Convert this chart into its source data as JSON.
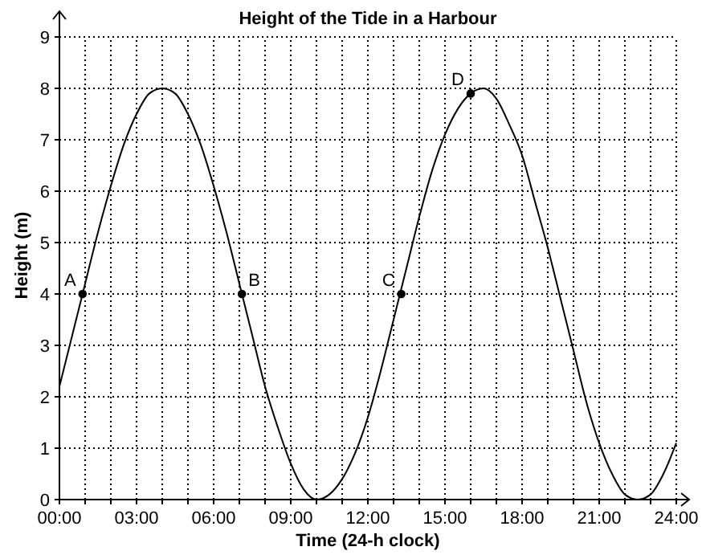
{
  "chart_data": {
    "type": "line",
    "title": "Height of the Tide in a Harbour",
    "xlabel": "Time (24-h clock)",
    "ylabel": "Height (m)",
    "xlim": [
      0,
      24.5
    ],
    "ylim": [
      0,
      9.5
    ],
    "xticks": [
      {
        "value": 0,
        "label": "00:00"
      },
      {
        "value": 1,
        "label": null
      },
      {
        "value": 2,
        "label": null
      },
      {
        "value": 3,
        "label": "03:00"
      },
      {
        "value": 4,
        "label": null
      },
      {
        "value": 5,
        "label": null
      },
      {
        "value": 6,
        "label": "06:00"
      },
      {
        "value": 7,
        "label": null
      },
      {
        "value": 8,
        "label": null
      },
      {
        "value": 9,
        "label": "09:00"
      },
      {
        "value": 10,
        "label": null
      },
      {
        "value": 11,
        "label": null
      },
      {
        "value": 12,
        "label": "12:00"
      },
      {
        "value": 13,
        "label": null
      },
      {
        "value": 14,
        "label": null
      },
      {
        "value": 15,
        "label": "15:00"
      },
      {
        "value": 16,
        "label": null
      },
      {
        "value": 17,
        "label": null
      },
      {
        "value": 18,
        "label": "18:00"
      },
      {
        "value": 19,
        "label": null
      },
      {
        "value": 20,
        "label": null
      },
      {
        "value": 21,
        "label": "21:00"
      },
      {
        "value": 22,
        "label": null
      },
      {
        "value": 23,
        "label": null
      },
      {
        "value": 24,
        "label": "24:00"
      }
    ],
    "yticks": [
      0,
      1,
      2,
      3,
      4,
      5,
      6,
      7,
      8,
      9
    ],
    "grid": true,
    "series": [
      {
        "color": "#000000",
        "marker": "none",
        "line_style": "solid",
        "x": [
          0,
          0.5,
          1,
          1.5,
          2,
          2.5,
          3,
          3.5,
          4,
          4.5,
          5,
          5.5,
          6,
          6.5,
          7,
          7.5,
          8,
          8.5,
          9,
          9.5,
          10,
          10.5,
          11,
          11.5,
          12,
          12.5,
          13,
          13.5,
          14,
          14.5,
          15,
          15.5,
          16,
          16.5,
          17,
          17.5,
          18,
          18.5,
          19,
          19.5,
          20,
          20.5,
          21,
          21.5,
          22,
          22.5,
          23,
          23.5,
          24
        ],
        "values": [
          2.2,
          3.2,
          4.2,
          5.2,
          6.1,
          6.9,
          7.5,
          7.9,
          8,
          7.9,
          7.5,
          6.9,
          6.1,
          5.2,
          4.2,
          3.2,
          2.2,
          1.4,
          0.7,
          0.2,
          0,
          0.1,
          0.4,
          0.9,
          1.6,
          2.5,
          3.5,
          4.5,
          5.5,
          6.4,
          7.1,
          7.6,
          7.9,
          8,
          7.8,
          7.3,
          6.7,
          5.8,
          4.9,
          3.9,
          2.9,
          1.9,
          1.1,
          0.5,
          0.1,
          0,
          0.1,
          0.5,
          1.1
        ]
      },
      {
        "type": "scatter",
        "color": "#000000",
        "marker": "circle",
        "x": [
          0.9,
          7.1,
          13.3,
          16
        ],
        "values": [
          4,
          4,
          4,
          7.9
        ]
      }
    ],
    "annotations": [
      {
        "text": "A",
        "x": 0.9,
        "y": 4
      },
      {
        "text": "B",
        "x": 7.1,
        "y": 4
      },
      {
        "text": "C",
        "x": 13.3,
        "y": 4
      },
      {
        "text": "D",
        "x": 16,
        "y": 7.9
      }
    ]
  }
}
